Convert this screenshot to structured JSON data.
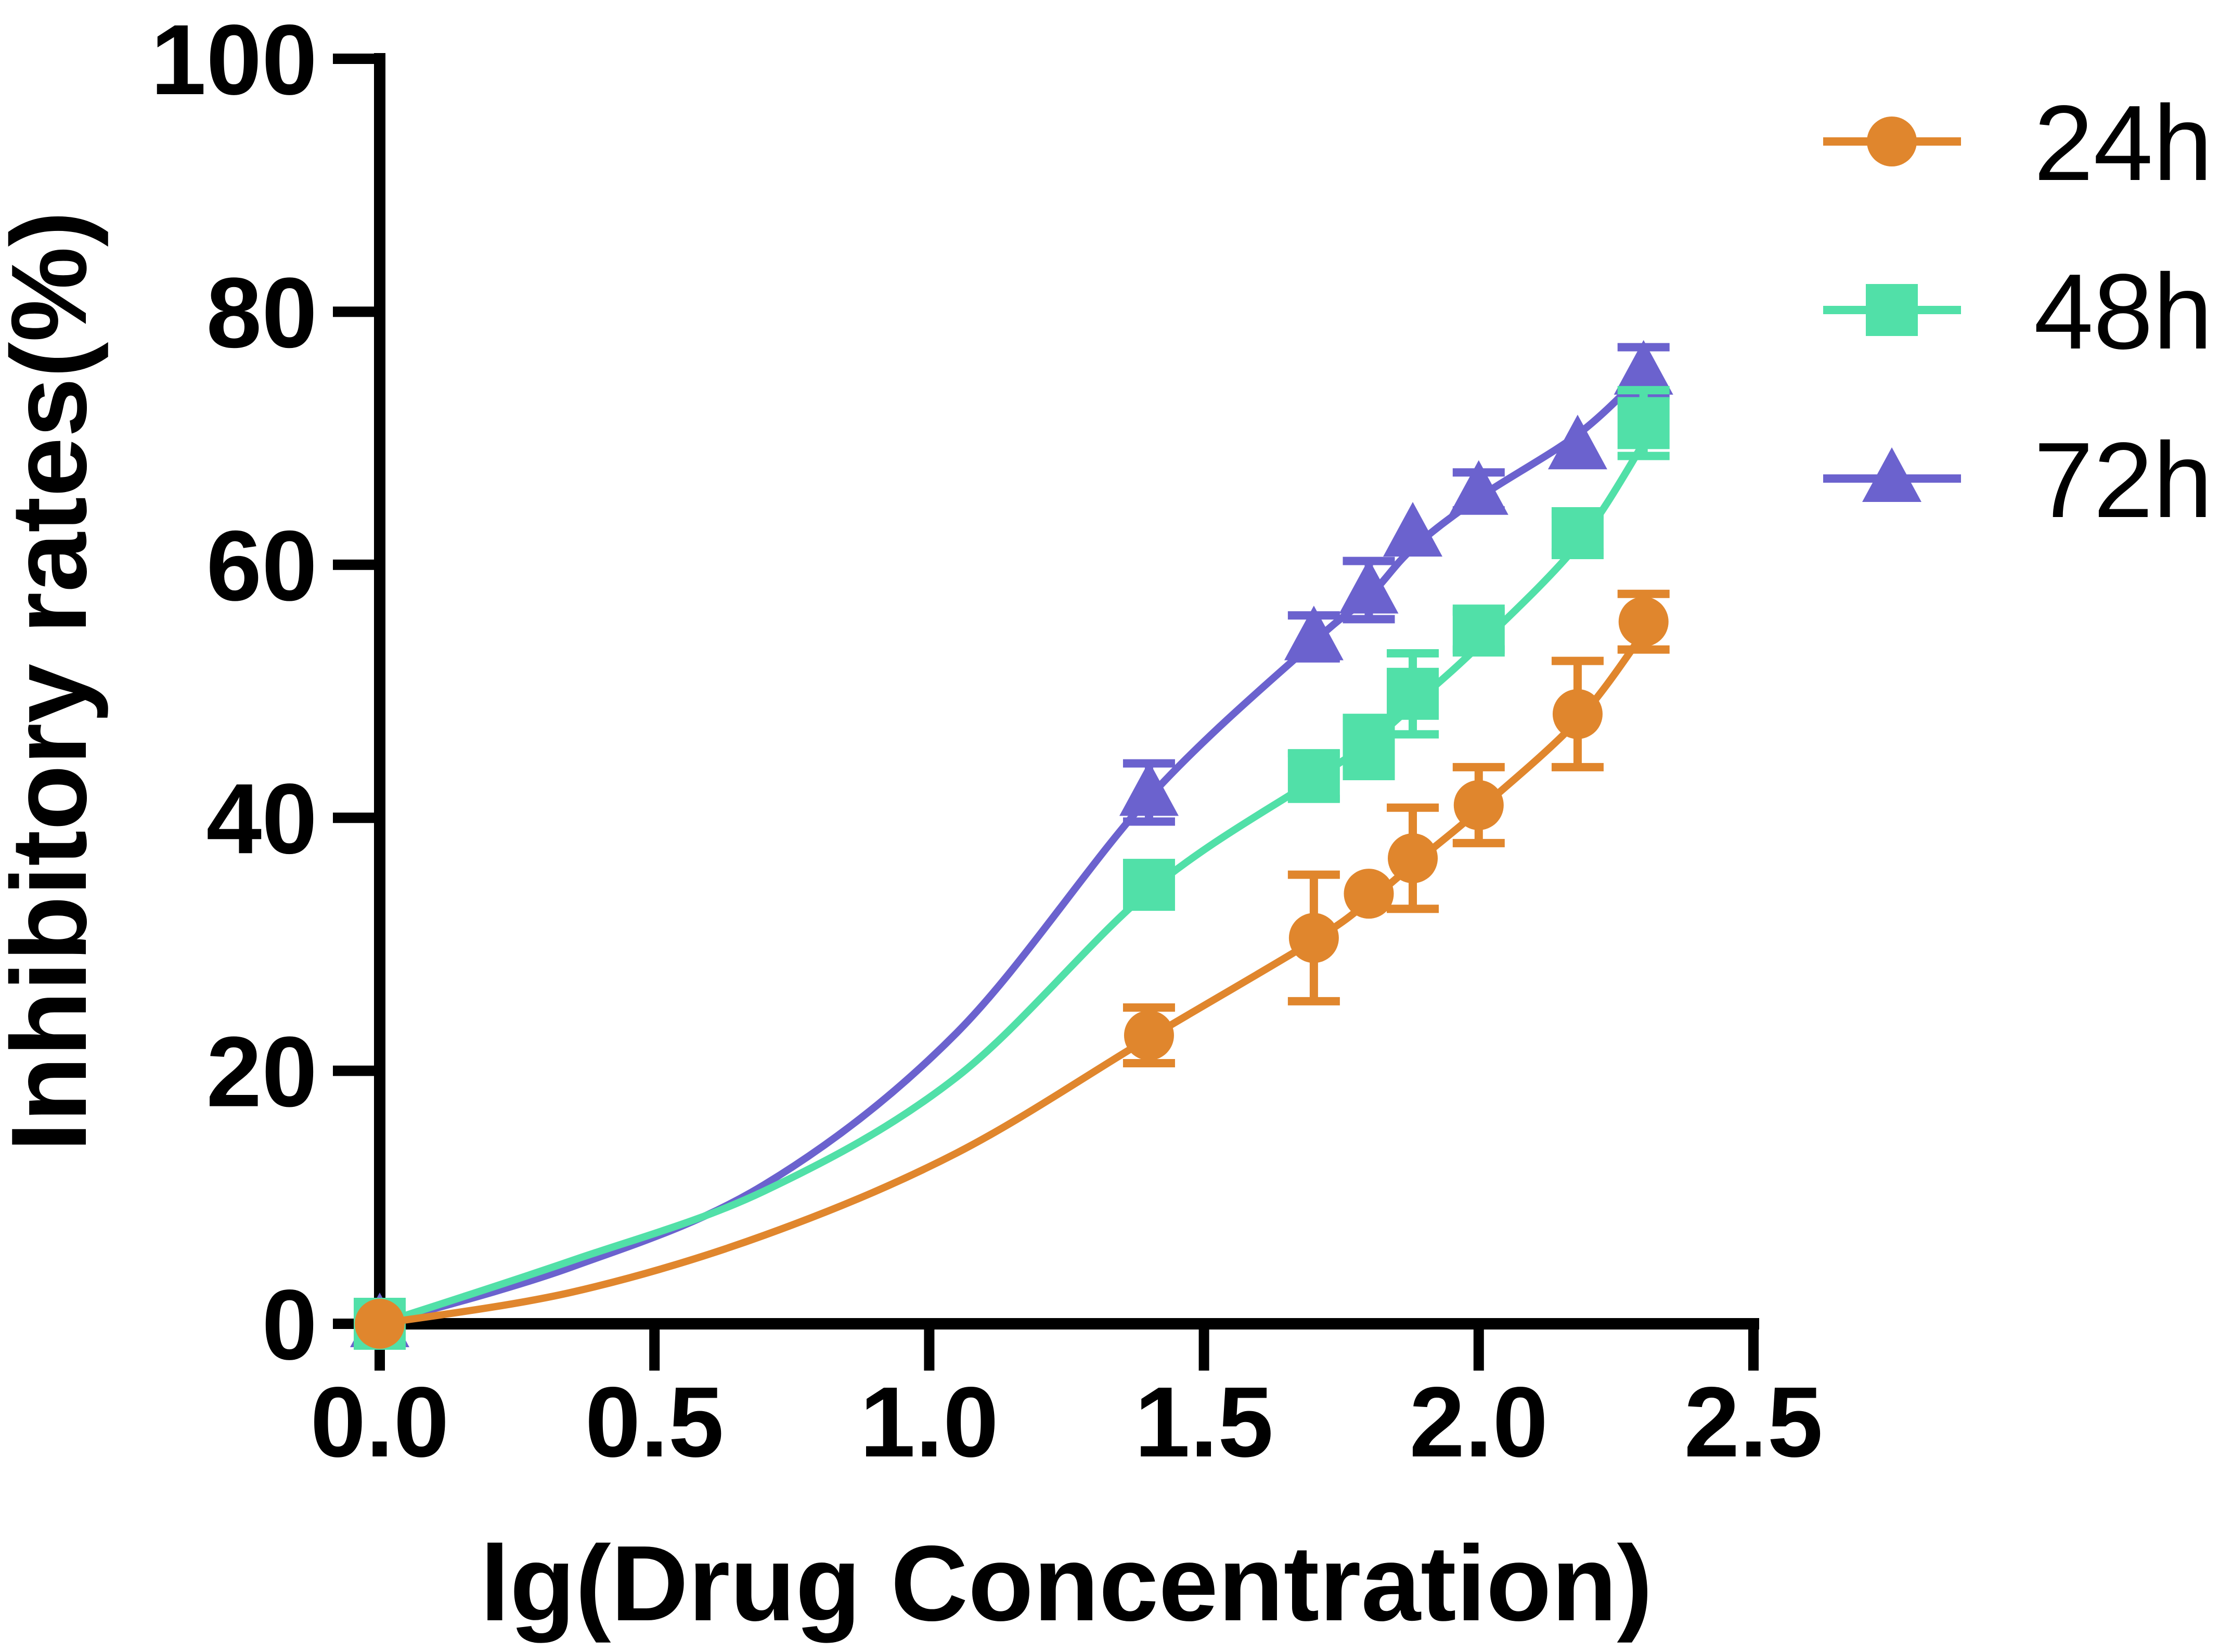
{
  "chart_data": {
    "type": "line",
    "title": "",
    "xlabel": "lg(Drug Concentration)",
    "ylabel": "Inhibitory rates(%)",
    "xlim": [
      0,
      2.5
    ],
    "ylim": [
      0,
      100
    ],
    "x_tick_labels": [
      "0.0",
      "0.5",
      "1.0",
      "1.5",
      "2.0",
      "2.5"
    ],
    "x_tick_values": [
      0,
      0.5,
      1.0,
      1.5,
      2.0,
      2.5
    ],
    "y_tick_labels": [
      "0",
      "20",
      "40",
      "60",
      "80",
      "100"
    ],
    "y_tick_values": [
      0,
      20,
      40,
      60,
      80,
      100
    ],
    "grid": false,
    "legend_position": "top-right",
    "axis_color": "#000000",
    "x": [
      0,
      1.4,
      1.7,
      1.8,
      1.88,
      2.0,
      2.18,
      2.3
    ],
    "series": [
      {
        "name": "24h",
        "marker": "circle",
        "color": "#E0862D",
        "values": [
          0,
          22.8,
          30.5,
          34.0,
          36.8,
          41.0,
          48.2,
          55.5
        ],
        "errors": [
          0,
          2.2,
          5.0,
          0,
          4.0,
          3.0,
          4.2,
          2.2
        ],
        "curve": [
          [
            0,
            0
          ],
          [
            0.35,
            2.5
          ],
          [
            0.7,
            7.0
          ],
          [
            1.05,
            13.5
          ],
          [
            1.4,
            22.6
          ],
          [
            1.7,
            30.3
          ],
          [
            1.8,
            33.4
          ],
          [
            1.88,
            36.3
          ],
          [
            2.0,
            40.6
          ],
          [
            2.18,
            47.7
          ],
          [
            2.3,
            54.6
          ]
        ]
      },
      {
        "name": "48h",
        "marker": "square",
        "color": "#51E0A8",
        "values": [
          0,
          34.7,
          43.3,
          45.6,
          49.8,
          54.8,
          62.5,
          71.2
        ],
        "errors": [
          0,
          0,
          1.8,
          2.3,
          3.2,
          1.5,
          1.5,
          2.6
        ],
        "curve": [
          [
            0,
            0
          ],
          [
            0.35,
            5.0
          ],
          [
            0.7,
            10.5
          ],
          [
            1.05,
            19.5
          ],
          [
            1.4,
            34.2
          ],
          [
            1.7,
            43.0
          ],
          [
            1.8,
            45.9
          ],
          [
            1.88,
            48.9
          ],
          [
            2.0,
            53.6
          ],
          [
            2.18,
            61.6
          ],
          [
            2.3,
            69.6
          ]
        ]
      },
      {
        "name": "72h",
        "marker": "triangle",
        "color": "#6B62CE",
        "values": [
          0,
          42.0,
          54.3,
          58.0,
          62.5,
          65.8,
          69.4,
          75.3
        ],
        "errors": [
          0,
          2.3,
          1.7,
          2.3,
          0,
          1.5,
          0,
          1.9
        ],
        "curve": [
          [
            0,
            0
          ],
          [
            0.35,
            4.5
          ],
          [
            0.7,
            11.0
          ],
          [
            1.05,
            23.0
          ],
          [
            1.4,
            41.6
          ],
          [
            1.7,
            53.9
          ],
          [
            1.8,
            57.5
          ],
          [
            1.88,
            61.3
          ],
          [
            2.0,
            65.3
          ],
          [
            2.18,
            70.3
          ],
          [
            2.3,
            75.1
          ]
        ]
      }
    ]
  }
}
